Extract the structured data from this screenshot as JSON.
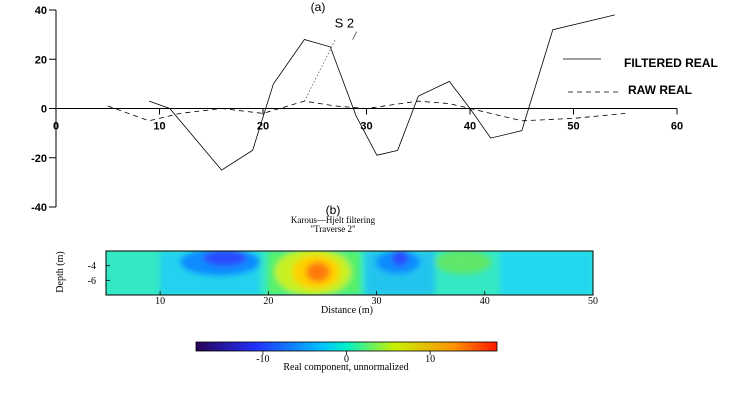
{
  "chart_data": [
    {
      "type": "line",
      "panel_label": "(a)",
      "xlim": [
        0,
        60
      ],
      "ylim": [
        -40,
        40
      ],
      "x_ticks": [
        0,
        10,
        20,
        30,
        40,
        50,
        60
      ],
      "y_ticks": [
        40,
        20,
        0,
        -20,
        -40
      ],
      "annotations": [
        {
          "text": "S 2",
          "x": 27.5,
          "y": 32
        }
      ],
      "legend": {
        "position": "right"
      },
      "series": [
        {
          "name": "FILTERED REAL",
          "style": "solid",
          "x": [
            9,
            11,
            16,
            19,
            21,
            24,
            26.5,
            29,
            31,
            33,
            35,
            38,
            40,
            42,
            45,
            48,
            54
          ],
          "y": [
            3,
            0,
            -25,
            -17,
            10,
            28,
            25,
            -3,
            -19,
            -17,
            5,
            11,
            0,
            -12,
            -9,
            32,
            38
          ]
        },
        {
          "name": "RAW REAL",
          "style": "dashed",
          "x": [
            5,
            9,
            12,
            16,
            20,
            24,
            27,
            30,
            35,
            38,
            40,
            45,
            50,
            55
          ],
          "y": [
            1,
            -5,
            -2,
            0,
            -2,
            3,
            1,
            0,
            3,
            2,
            0,
            -5,
            -4,
            -2
          ]
        },
        {
          "name": "",
          "style": "dotted",
          "x": [
            24,
            27
          ],
          "y": [
            3,
            28
          ]
        }
      ]
    },
    {
      "type": "heatmap",
      "panel_label": "(b)",
      "title": "Karous—Hjelt filtering",
      "subtitle": "\"Traverse 2\"",
      "xlabel": "Distance (m)",
      "ylabel": "Depth (m)",
      "xlim": [
        5,
        50
      ],
      "ylim": [
        -8,
        -2
      ],
      "x_ticks": [
        10,
        20,
        30,
        40,
        50
      ],
      "y_ticks": [
        -4,
        -6
      ],
      "colorbar": {
        "label": "Real component, unnormalized",
        "range": [
          -18,
          18
        ],
        "ticks": [
          -10,
          0,
          10
        ],
        "colors": [
          "#2a0055",
          "#2232ff",
          "#00c2ff",
          "#00f0c8",
          "#c8f000",
          "#ff9000",
          "#ff1800"
        ]
      },
      "anomalies": [
        {
          "x": 15,
          "y": -4.5,
          "value": -6
        },
        {
          "x": 25,
          "y": -5.5,
          "value": 15
        },
        {
          "x": 32,
          "y": -4,
          "value": -6
        },
        {
          "x": 42,
          "y": -4,
          "value": 4
        }
      ]
    }
  ]
}
